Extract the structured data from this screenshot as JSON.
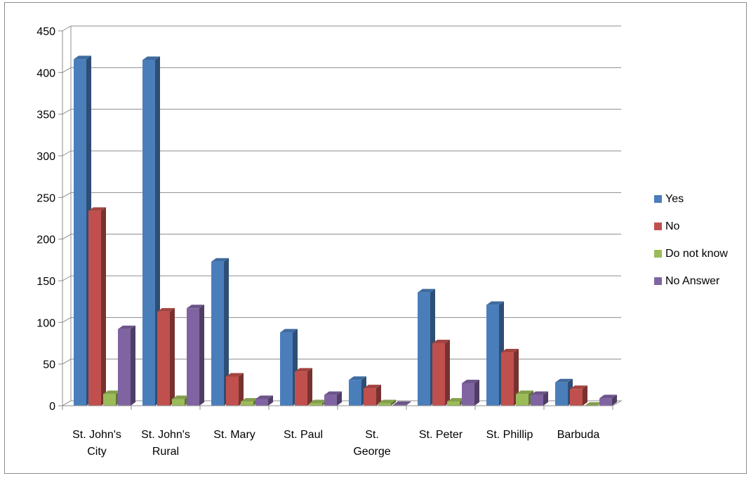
{
  "chart_data": {
    "type": "bar",
    "categories": [
      [
        "St. John's",
        "City"
      ],
      [
        "St. John's",
        "Rural"
      ],
      [
        "St. Mary"
      ],
      [
        "St. Paul"
      ],
      [
        "St.",
        "George"
      ],
      [
        "St. Peter"
      ],
      [
        "St. Phillip"
      ],
      [
        "Barbuda"
      ]
    ],
    "series": [
      {
        "name": "Yes",
        "color": "#4a7ebb",
        "values": [
          416,
          415,
          173,
          88,
          31,
          136,
          121,
          28
        ]
      },
      {
        "name": "No",
        "color": "#c0504d",
        "values": [
          234,
          113,
          35,
          41,
          21,
          75,
          64,
          20
        ]
      },
      {
        "name": "Do not know",
        "color": "#9bbb59",
        "values": [
          14,
          8,
          5,
          3,
          3,
          5,
          14,
          0
        ]
      },
      {
        "name": "No Answer",
        "color": "#8064a2",
        "values": [
          92,
          117,
          8,
          13,
          1,
          27,
          13,
          9
        ]
      }
    ],
    "ylim": [
      0,
      450
    ],
    "yticks": [
      0,
      50,
      100,
      150,
      200,
      250,
      300,
      350,
      400,
      450
    ],
    "grid": true,
    "legend_position": "right",
    "style": "3d-clustered-column"
  }
}
